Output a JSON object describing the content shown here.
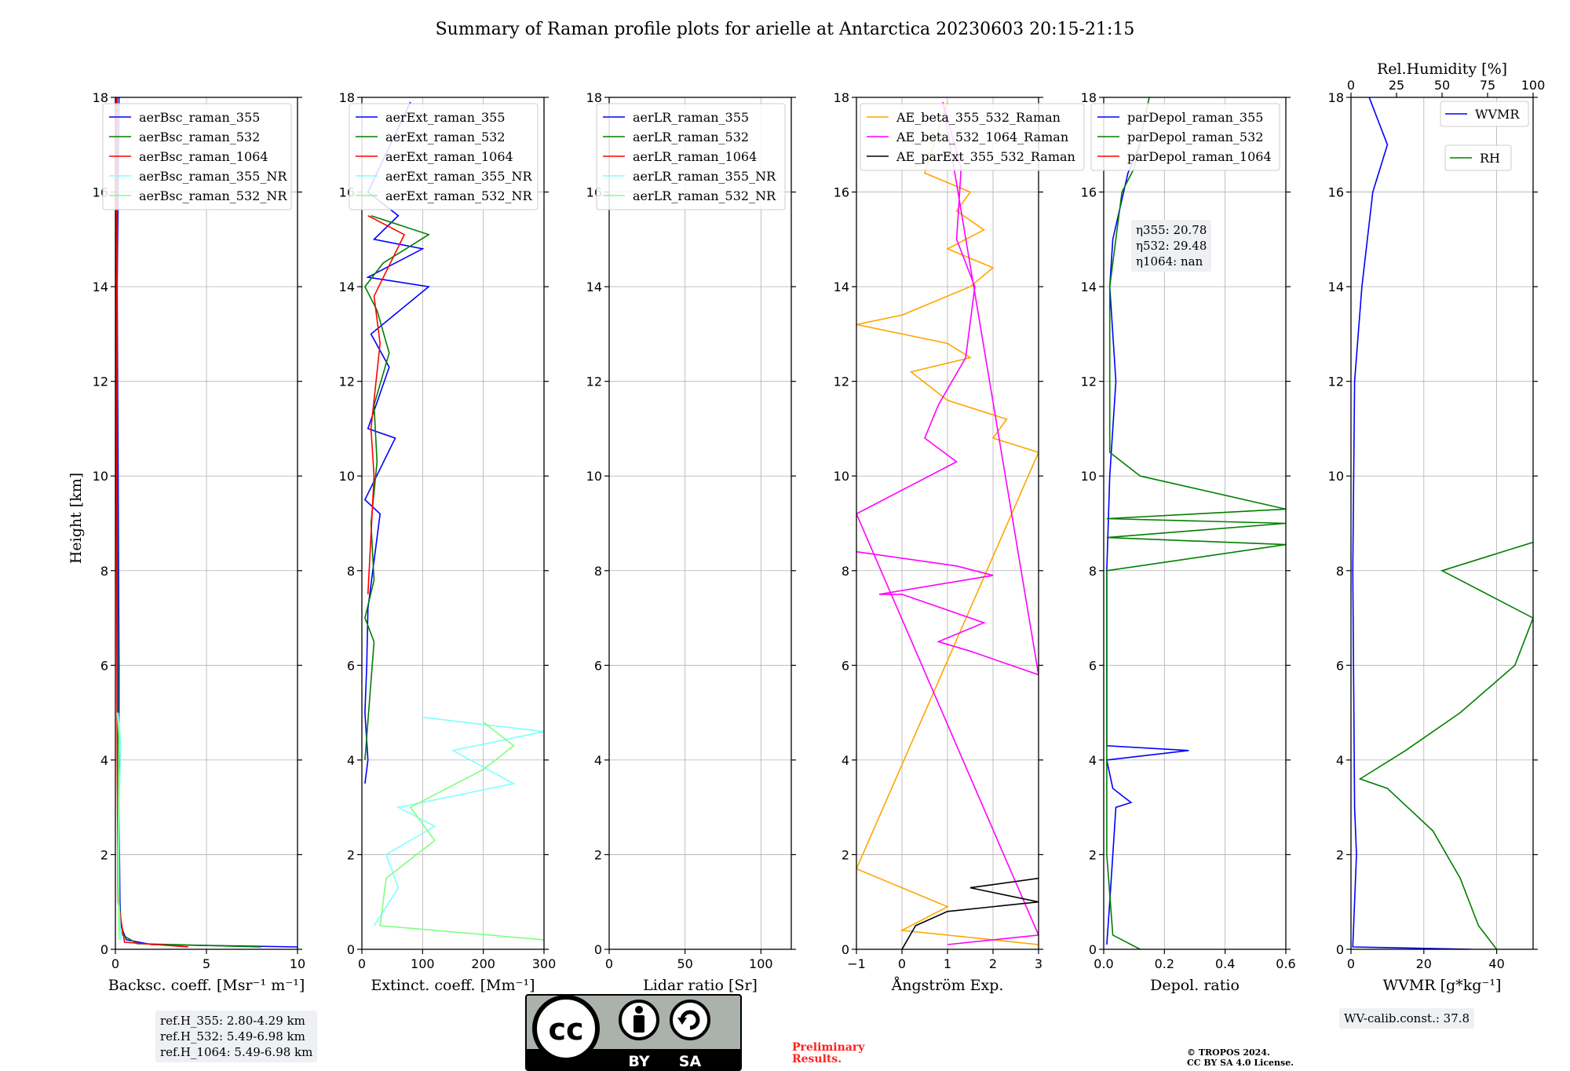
{
  "title": "Summary of Raman profile plots for arielle at Antarctica 20230603 20:15-21:15",
  "ylabel": "Height [km]",
  "colors": {
    "blue": "#0000ff",
    "green": "#007f00",
    "red": "#ff0000",
    "cyan": "#80ffff",
    "lightgreen": "#80ff80",
    "orange": "#ffa500",
    "magenta": "#ff00ff",
    "black": "#000000"
  },
  "ref_info": [
    "ref.H_355: 2.80-4.29 km",
    "ref.H_532: 5.49-6.98 km",
    "ref.H_1064: 5.49-6.98 km"
  ],
  "eta_info": [
    "η355: 20.78",
    "η532: 29.48",
    "η1064: nan"
  ],
  "wv_calib": "WV-calib.const.: 37.8",
  "license_badge": {
    "left": "BY",
    "right": "SA"
  },
  "preliminary": [
    "Preliminary",
    "Results."
  ],
  "copyright": [
    "© TROPOS 2024.",
    "CC BY SA 4.0 License."
  ],
  "chart_data": [
    {
      "type": "line",
      "name": "backscatter",
      "xlabel": "Backsc. coeff. [Msr⁻¹ m⁻¹]",
      "xlim": [
        0,
        10
      ],
      "ylim": [
        0,
        18
      ],
      "xticks": [
        "0",
        "5",
        "10"
      ],
      "yticks": [
        "0",
        "2",
        "4",
        "6",
        "8",
        "10",
        "12",
        "14",
        "16",
        "18"
      ],
      "grid": true,
      "legend": "top-right",
      "series": [
        {
          "name": "aerBsc_raman_355",
          "color": "blue",
          "points": [
            [
              10,
              0.05
            ],
            [
              2,
              0.1
            ],
            [
              0.6,
              0.2
            ],
            [
              0.3,
              0.5
            ],
            [
              0.25,
              1
            ],
            [
              0.2,
              3
            ],
            [
              0.2,
              6
            ],
            [
              0.15,
              10
            ],
            [
              0.1,
              14
            ],
            [
              0.15,
              16
            ],
            [
              0.2,
              18
            ]
          ]
        },
        {
          "name": "aerBsc_raman_532",
          "color": "green",
          "points": [
            [
              8,
              0.05
            ],
            [
              1.2,
              0.12
            ],
            [
              0.4,
              0.3
            ],
            [
              0.2,
              1
            ],
            [
              0.15,
              4
            ],
            [
              0.1,
              10
            ],
            [
              0.1,
              18
            ]
          ]
        },
        {
          "name": "aerBsc_raman_1064",
          "color": "red",
          "points": [
            [
              4,
              0.05
            ],
            [
              0.5,
              0.15
            ],
            [
              0.15,
              1
            ],
            [
              0.1,
              4
            ],
            [
              0.05,
              10
            ],
            [
              0.05,
              18
            ]
          ]
        },
        {
          "name": "aerBsc_raman_355_NR",
          "color": "cyan",
          "points": [
            [
              0.3,
              0.2
            ],
            [
              0.2,
              1
            ],
            [
              0.2,
              3
            ],
            [
              0.3,
              4.3
            ],
            [
              0.15,
              5
            ]
          ]
        },
        {
          "name": "aerBsc_raman_532_NR",
          "color": "lightgreen",
          "points": [
            [
              0.2,
              0.2
            ],
            [
              0.15,
              2
            ],
            [
              0.2,
              4.5
            ],
            [
              0.1,
              5
            ]
          ]
        }
      ]
    },
    {
      "type": "line",
      "name": "extinction",
      "xlabel": "Extinct. coeff. [Mm⁻¹]",
      "xlim": [
        0,
        300
      ],
      "ylim": [
        0,
        18
      ],
      "xticks": [
        "0",
        "100",
        "200",
        "300"
      ],
      "yticks": [
        "0",
        "2",
        "4",
        "6",
        "8",
        "10",
        "12",
        "14",
        "16",
        "18"
      ],
      "grid": true,
      "legend": "top-right",
      "series": [
        {
          "name": "aerExt_raman_355",
          "color": "blue",
          "points": [
            [
              5,
              3.5
            ],
            [
              10,
              4
            ],
            [
              5,
              5
            ],
            [
              8,
              6
            ],
            [
              10,
              7.2
            ],
            [
              30,
              9.2
            ],
            [
              5,
              9.5
            ],
            [
              55,
              10.8
            ],
            [
              10,
              11
            ],
            [
              45,
              12.3
            ],
            [
              15,
              13
            ],
            [
              110,
              14
            ],
            [
              10,
              14.2
            ],
            [
              100,
              14.8
            ],
            [
              20,
              15
            ],
            [
              60,
              15.5
            ],
            [
              10,
              16
            ],
            [
              80,
              17.9
            ]
          ]
        },
        {
          "name": "aerExt_raman_532",
          "color": "green",
          "points": [
            [
              5,
              4
            ],
            [
              20,
              6.5
            ],
            [
              5,
              7
            ],
            [
              20,
              7.8
            ],
            [
              15,
              9
            ],
            [
              25,
              10.3
            ],
            [
              20,
              11.5
            ],
            [
              45,
              12.6
            ],
            [
              25,
              13.5
            ],
            [
              5,
              14
            ],
            [
              35,
              14.5
            ],
            [
              110,
              15.1
            ],
            [
              15,
              15.5
            ]
          ]
        },
        {
          "name": "aerExt_raman_1064",
          "color": "red",
          "points": [
            [
              10,
              7.5
            ],
            [
              20,
              10
            ],
            [
              15,
              11
            ],
            [
              30,
              12.8
            ],
            [
              20,
              13.8
            ],
            [
              70,
              15.1
            ],
            [
              10,
              15.5
            ]
          ]
        },
        {
          "name": "aerExt_raman_355_NR",
          "color": "cyan",
          "points": [
            [
              20,
              0.5
            ],
            [
              60,
              1.3
            ],
            [
              40,
              2
            ],
            [
              120,
              2.6
            ],
            [
              60,
              3
            ],
            [
              250,
              3.5
            ],
            [
              150,
              4.2
            ],
            [
              300,
              4.6
            ],
            [
              100,
              4.9
            ]
          ]
        },
        {
          "name": "aerExt_raman_532_NR",
          "color": "lightgreen",
          "points": [
            [
              300,
              0.2
            ],
            [
              30,
              0.5
            ],
            [
              40,
              1.5
            ],
            [
              120,
              2.3
            ],
            [
              80,
              3
            ],
            [
              200,
              3.8
            ],
            [
              250,
              4.3
            ],
            [
              200,
              4.8
            ]
          ]
        }
      ]
    },
    {
      "type": "line",
      "name": "lidar_ratio",
      "xlabel": "Lidar ratio [Sr]",
      "xlim": [
        0,
        120
      ],
      "ylim": [
        0,
        18
      ],
      "xticks": [
        "0",
        "50",
        "100"
      ],
      "yticks": [
        "0",
        "2",
        "4",
        "6",
        "8",
        "10",
        "12",
        "14",
        "16",
        "18"
      ],
      "grid": true,
      "legend": "top-right",
      "series": [
        {
          "name": "aerLR_raman_355",
          "color": "blue",
          "points": []
        },
        {
          "name": "aerLR_raman_532",
          "color": "green",
          "points": []
        },
        {
          "name": "aerLR_raman_1064",
          "color": "red",
          "points": []
        },
        {
          "name": "aerLR_raman_355_NR",
          "color": "cyan",
          "points": []
        },
        {
          "name": "aerLR_raman_532_NR",
          "color": "lightgreen",
          "points": []
        }
      ]
    },
    {
      "type": "line",
      "name": "angstrom",
      "xlabel": "Ångström Exp.",
      "xlim": [
        -1,
        3
      ],
      "ylim": [
        0,
        18
      ],
      "xticks": [
        "−1",
        "0",
        "1",
        "2",
        "3"
      ],
      "yticks": [
        "0",
        "2",
        "4",
        "6",
        "8",
        "10",
        "12",
        "14",
        "16",
        "18"
      ],
      "grid": true,
      "legend": "top-center",
      "series": [
        {
          "name": "AE_beta_355_532_Raman",
          "color": "orange",
          "points": [
            [
              3,
              0.1
            ],
            [
              0,
              0.4
            ],
            [
              1,
              0.9
            ],
            [
              -1,
              1.7
            ],
            [
              3,
              10.5
            ],
            [
              2,
              10.8
            ],
            [
              2.3,
              11.2
            ],
            [
              1,
              11.6
            ],
            [
              0.2,
              12.2
            ],
            [
              1.5,
              12.5
            ],
            [
              1,
              12.8
            ],
            [
              -1,
              13.2
            ],
            [
              0,
              13.4
            ],
            [
              1.5,
              14
            ],
            [
              2,
              14.4
            ],
            [
              1,
              14.8
            ],
            [
              1.8,
              15.2
            ],
            [
              1.2,
              15.6
            ],
            [
              1.5,
              16
            ],
            [
              0.5,
              16.4
            ],
            [
              1,
              17.9
            ]
          ]
        },
        {
          "name": "AE_beta_532_1064_Raman",
          "color": "magenta",
          "points": [
            [
              1,
              0.1
            ],
            [
              3,
              0.3
            ],
            [
              -1,
              9.2
            ],
            [
              1.2,
              10.3
            ],
            [
              0.5,
              10.8
            ],
            [
              0.8,
              11.5
            ],
            [
              1.4,
              12.5
            ],
            [
              1.6,
              14
            ],
            [
              1.2,
              15
            ],
            [
              1.3,
              16.5
            ],
            [
              0.9,
              17.9
            ],
            [
              3,
              5.8
            ],
            [
              1.5,
              6.3
            ],
            [
              0.8,
              6.5
            ],
            [
              1.8,
              6.9
            ],
            [
              0,
              7.5
            ],
            [
              -0.5,
              7.5
            ],
            [
              2,
              7.9
            ],
            [
              1.2,
              8.1
            ],
            [
              -1,
              8.4
            ]
          ]
        },
        {
          "name": "AE_parExt_355_532_Raman",
          "color": "black",
          "points": [
            [
              0,
              0
            ],
            [
              0.3,
              0.5
            ],
            [
              1,
              0.8
            ],
            [
              3,
              1
            ],
            [
              1.5,
              1.3
            ],
            [
              3,
              1.5
            ]
          ]
        }
      ]
    },
    {
      "type": "line",
      "name": "depolarization",
      "xlabel": "Depol. ratio",
      "xlim": [
        0,
        0.6
      ],
      "ylim": [
        0,
        18
      ],
      "xticks": [
        "0.0",
        "0.2",
        "0.4",
        "0.6"
      ],
      "yticks": [
        "0",
        "2",
        "4",
        "6",
        "8",
        "10",
        "12",
        "14",
        "16",
        "18"
      ],
      "grid": true,
      "legend": "top-right",
      "series": [
        {
          "name": "parDepol_raman_355",
          "color": "blue",
          "points": [
            [
              0.01,
              0.1
            ],
            [
              0.02,
              1
            ],
            [
              0.03,
              2
            ],
            [
              0.04,
              3
            ],
            [
              0.09,
              3.1
            ],
            [
              0.03,
              3.4
            ],
            [
              0.01,
              4
            ],
            [
              0.28,
              4.2
            ],
            [
              0.01,
              4.3
            ],
            [
              0.01,
              8
            ],
            [
              0.02,
              10
            ],
            [
              0.04,
              12
            ],
            [
              0.03,
              13
            ],
            [
              0.02,
              14
            ],
            [
              0.03,
              15
            ],
            [
              0.08,
              16.4
            ],
            [
              0.12,
              17
            ]
          ]
        },
        {
          "name": "parDepol_raman_532",
          "color": "green",
          "points": [
            [
              0.12,
              0
            ],
            [
              0.03,
              0.3
            ],
            [
              0.01,
              2
            ],
            [
              0.01,
              8
            ],
            [
              0.6,
              8.55
            ],
            [
              0.01,
              8.7
            ],
            [
              0.6,
              9
            ],
            [
              0.01,
              9.1
            ],
            [
              0.6,
              9.3
            ],
            [
              0.12,
              10
            ],
            [
              0.02,
              10.5
            ],
            [
              0.02,
              14
            ],
            [
              0.06,
              16
            ],
            [
              0.1,
              16.5
            ],
            [
              0.15,
              18
            ]
          ]
        },
        {
          "name": "parDepol_raman_1064",
          "color": "red",
          "points": []
        }
      ]
    },
    {
      "type": "line",
      "name": "water_vapor",
      "xlabel": "WVMR [g*kg⁻¹]",
      "xlim": [
        0,
        50
      ],
      "ylim": [
        0,
        18
      ],
      "xticks": [
        "0",
        "20",
        "40"
      ],
      "yticks": [
        "0",
        "2",
        "4",
        "6",
        "8",
        "10",
        "12",
        "14",
        "16",
        "18"
      ],
      "grid": true,
      "legend": "top-right",
      "x2label": "Rel.Humidity [%]",
      "x2lim": [
        0,
        100
      ],
      "x2ticks": [
        "0",
        "25",
        "50",
        "75",
        "100"
      ],
      "series": [
        {
          "name": "WVMR",
          "color": "blue",
          "points": [
            [
              33,
              0
            ],
            [
              0.5,
              0.05
            ],
            [
              1.5,
              2
            ],
            [
              1,
              3
            ],
            [
              0.8,
              5
            ],
            [
              0.5,
              8
            ],
            [
              1,
              12
            ],
            [
              3,
              14
            ],
            [
              6,
              16
            ],
            [
              10,
              17
            ],
            [
              5,
              18
            ]
          ]
        },
        {
          "name": "RH",
          "color": "green",
          "points": [
            [
              80,
              0
            ],
            [
              70,
              0.5
            ],
            [
              60,
              1.5
            ],
            [
              45,
              2.5
            ],
            [
              20,
              3.4
            ],
            [
              5,
              3.6
            ],
            [
              30,
              4.2
            ],
            [
              60,
              5
            ],
            [
              90,
              6
            ],
            [
              100,
              7
            ],
            [
              50,
              8
            ],
            [
              100,
              8.6
            ]
          ]
        }
      ]
    }
  ]
}
